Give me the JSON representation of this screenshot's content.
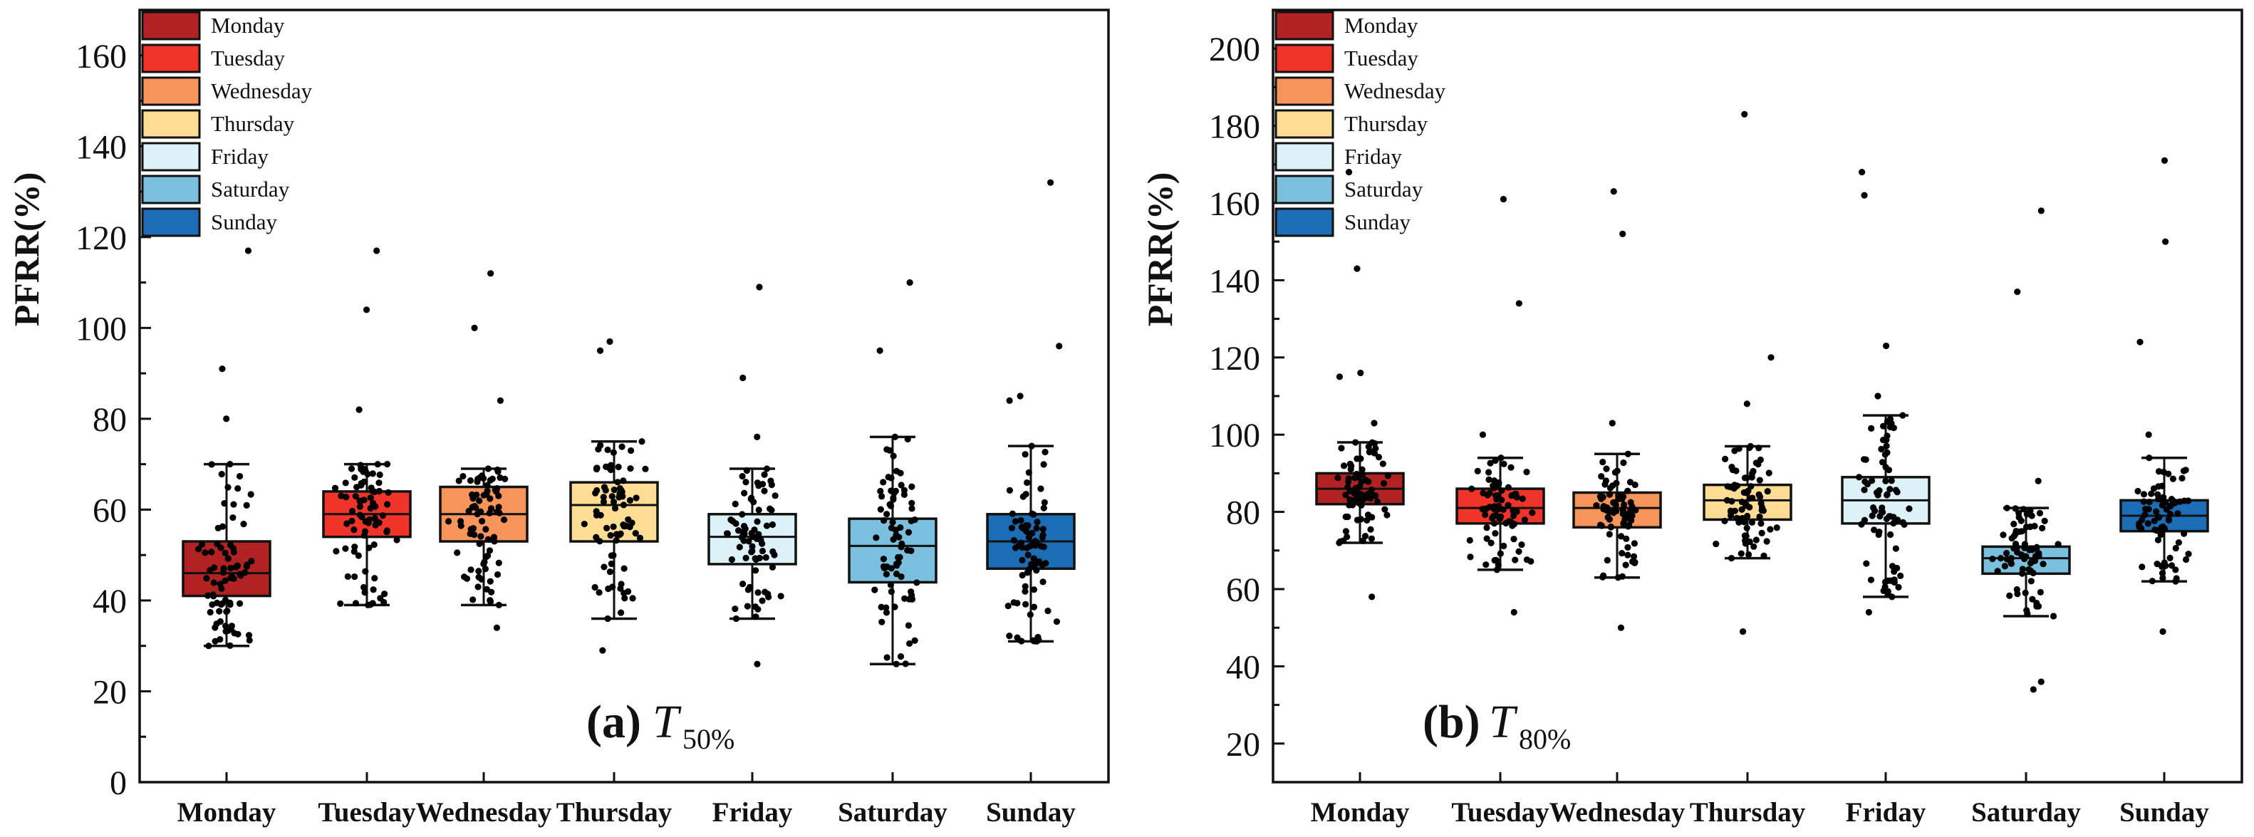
{
  "chart_data": [
    {
      "type": "box",
      "panel_label": "(a)",
      "panel_symbol": "T",
      "panel_subscript": "50%",
      "title": "",
      "xlabel": "",
      "ylabel": "PFRR(%)",
      "ylim": [
        0,
        170
      ],
      "yticks": [
        0,
        20,
        40,
        60,
        80,
        100,
        120,
        140,
        160
      ],
      "ytick_labels": [
        "0",
        "20",
        "40",
        "60",
        "80",
        "100",
        "120",
        "140",
        "160"
      ],
      "legend_placement": "top-left",
      "categories": [
        "Monday",
        "Tuesday",
        "Wednesday",
        "Thursday",
        "Friday",
        "Saturday",
        "Sunday"
      ],
      "boxes": [
        {
          "name": "Monday",
          "whisker_low": 30,
          "q1": 41,
          "median": 46,
          "q3": 53,
          "whisker_high": 70,
          "outliers": [
            80,
            91,
            117
          ]
        },
        {
          "name": "Tuesday",
          "whisker_low": 39,
          "q1": 54,
          "median": 59,
          "q3": 64,
          "whisker_high": 70,
          "outliers": [
            82,
            104,
            117
          ]
        },
        {
          "name": "Wednesday",
          "whisker_low": 39,
          "q1": 53,
          "median": 59,
          "q3": 65,
          "whisker_high": 69,
          "outliers": [
            34,
            84,
            100,
            112
          ]
        },
        {
          "name": "Thursday",
          "whisker_low": 36,
          "q1": 53,
          "median": 61,
          "q3": 66,
          "whisker_high": 75,
          "outliers": [
            29,
            95,
            97
          ]
        },
        {
          "name": "Friday",
          "whisker_low": 36,
          "q1": 48,
          "median": 54,
          "q3": 59,
          "whisker_high": 69,
          "outliers": [
            26,
            76,
            89,
            109
          ]
        },
        {
          "name": "Saturday",
          "whisker_low": 26,
          "q1": 44,
          "median": 52,
          "q3": 58,
          "whisker_high": 76,
          "outliers": [
            95,
            110
          ]
        },
        {
          "name": "Sunday",
          "whisker_low": 31,
          "q1": 47,
          "median": 53,
          "q3": 59,
          "whisker_high": 74,
          "outliers": [
            84,
            85,
            96,
            132
          ]
        }
      ]
    },
    {
      "type": "box",
      "panel_label": "(b)",
      "panel_symbol": "T",
      "panel_subscript": "80%",
      "title": "",
      "xlabel": "",
      "ylabel": "PFRR(%)",
      "ylim": [
        10,
        210
      ],
      "yticks": [
        20,
        40,
        60,
        80,
        100,
        120,
        140,
        160,
        180,
        200
      ],
      "ytick_labels": [
        "20",
        "40",
        "60",
        "80",
        "100",
        "120",
        "140",
        "160",
        "180",
        "200"
      ],
      "legend_placement": "top-left",
      "categories": [
        "Monday",
        "Tuesday",
        "Wednesday",
        "Thursday",
        "Friday",
        "Saturday",
        "Sunday"
      ],
      "boxes": [
        {
          "name": "Monday",
          "whisker_low": 72,
          "q1": 82,
          "median": 86,
          "q3": 90,
          "whisker_high": 98,
          "outliers": [
            58,
            103,
            115,
            116,
            143,
            168
          ]
        },
        {
          "name": "Tuesday",
          "whisker_low": 65,
          "q1": 77,
          "median": 81,
          "q3": 86,
          "whisker_high": 94,
          "outliers": [
            54,
            100,
            134,
            161
          ]
        },
        {
          "name": "Wednesday",
          "whisker_low": 63,
          "q1": 76,
          "median": 81,
          "q3": 85,
          "whisker_high": 95,
          "outliers": [
            50,
            103,
            152,
            163
          ]
        },
        {
          "name": "Thursday",
          "whisker_low": 68,
          "q1": 78,
          "median": 83,
          "q3": 87,
          "whisker_high": 97,
          "outliers": [
            49,
            108,
            120,
            183
          ]
        },
        {
          "name": "Friday",
          "whisker_low": 58,
          "q1": 77,
          "median": 83,
          "q3": 89,
          "whisker_high": 105,
          "outliers": [
            54,
            110,
            123,
            162,
            168
          ]
        },
        {
          "name": "Saturday",
          "whisker_low": 53,
          "q1": 64,
          "median": 68,
          "q3": 71,
          "whisker_high": 81,
          "outliers": [
            34,
            36,
            88,
            137,
            158
          ]
        },
        {
          "name": "Sunday",
          "whisker_low": 62,
          "q1": 75,
          "median": 79,
          "q3": 83,
          "whisker_high": 94,
          "outliers": [
            49,
            100,
            124,
            150,
            171
          ]
        }
      ]
    }
  ],
  "legend": [
    {
      "label": "Monday",
      "color": "#B22222"
    },
    {
      "label": "Tuesday",
      "color": "#F0342A"
    },
    {
      "label": "Wednesday",
      "color": "#F7945A"
    },
    {
      "label": "Thursday",
      "color": "#FCDD93"
    },
    {
      "label": "Friday",
      "color": "#DDF2F8"
    },
    {
      "label": "Saturday",
      "color": "#7BBFDE"
    },
    {
      "label": "Sunday",
      "color": "#1B6DB5"
    }
  ]
}
